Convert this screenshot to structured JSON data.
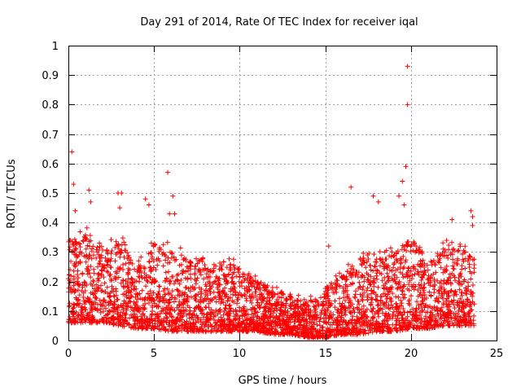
{
  "chart_data": {
    "type": "scatter",
    "title": "Day 291 of 2014, Rate Of TEC Index for receiver iqal",
    "xlabel": "GPS time / hours",
    "ylabel": "ROTI / TECUs",
    "xlim": [
      0,
      25
    ],
    "ylim": [
      0,
      1
    ],
    "xticks": [
      0,
      5,
      10,
      15,
      20,
      25
    ],
    "yticks": [
      0,
      0.1,
      0.2,
      0.3,
      0.4,
      0.5,
      0.6,
      0.7,
      0.8,
      0.9,
      1
    ],
    "xtick_labels": [
      "0",
      "5",
      "10",
      "15",
      "20",
      "25"
    ],
    "ytick_labels": [
      "0",
      "0.1",
      "0.2",
      "0.3",
      "0.4",
      "0.5",
      "0.6",
      "0.7",
      "0.8",
      "0.9",
      "1"
    ],
    "grid": true,
    "marker": "+",
    "color": "#ff0000",
    "point_count_estimate": 9000,
    "envelope": {
      "hours": [
        0,
        1,
        2,
        3,
        4,
        5,
        6,
        7,
        8,
        9,
        10,
        11,
        12,
        13,
        14,
        15,
        16,
        17,
        18,
        19,
        20,
        21,
        22,
        23,
        23.7
      ],
      "typical_max": [
        0.32,
        0.36,
        0.32,
        0.34,
        0.25,
        0.33,
        0.3,
        0.28,
        0.26,
        0.27,
        0.25,
        0.2,
        0.17,
        0.15,
        0.13,
        0.18,
        0.22,
        0.28,
        0.3,
        0.3,
        0.35,
        0.26,
        0.32,
        0.3,
        0.3
      ],
      "typical_min": [
        0.06,
        0.06,
        0.06,
        0.05,
        0.04,
        0.04,
        0.03,
        0.03,
        0.03,
        0.03,
        0.03,
        0.03,
        0.02,
        0.02,
        0.01,
        0.01,
        0.02,
        0.02,
        0.03,
        0.03,
        0.04,
        0.04,
        0.05,
        0.05,
        0.05
      ]
    },
    "outliers": [
      {
        "x": 0.2,
        "y": 0.64
      },
      {
        "x": 0.3,
        "y": 0.53
      },
      {
        "x": 0.4,
        "y": 0.44
      },
      {
        "x": 1.2,
        "y": 0.51
      },
      {
        "x": 1.3,
        "y": 0.47
      },
      {
        "x": 2.9,
        "y": 0.5
      },
      {
        "x": 3.1,
        "y": 0.5
      },
      {
        "x": 3.0,
        "y": 0.45
      },
      {
        "x": 4.5,
        "y": 0.48
      },
      {
        "x": 4.7,
        "y": 0.46
      },
      {
        "x": 5.8,
        "y": 0.57
      },
      {
        "x": 6.1,
        "y": 0.49
      },
      {
        "x": 5.9,
        "y": 0.43
      },
      {
        "x": 6.2,
        "y": 0.43
      },
      {
        "x": 15.2,
        "y": 0.32
      },
      {
        "x": 16.5,
        "y": 0.52
      },
      {
        "x": 17.8,
        "y": 0.49
      },
      {
        "x": 18.1,
        "y": 0.47
      },
      {
        "x": 19.3,
        "y": 0.49
      },
      {
        "x": 19.5,
        "y": 0.54
      },
      {
        "x": 19.7,
        "y": 0.59
      },
      {
        "x": 19.8,
        "y": 0.93
      },
      {
        "x": 19.8,
        "y": 0.8
      },
      {
        "x": 19.6,
        "y": 0.46
      },
      {
        "x": 22.4,
        "y": 0.41
      },
      {
        "x": 23.5,
        "y": 0.44
      },
      {
        "x": 23.6,
        "y": 0.42
      },
      {
        "x": 23.6,
        "y": 0.39
      }
    ]
  }
}
